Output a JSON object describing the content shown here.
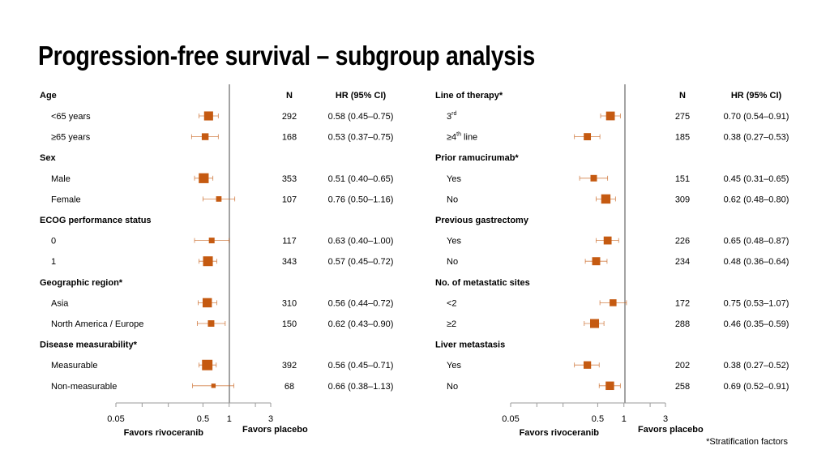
{
  "title": "Progression-free survival – subgroup analysis",
  "footnote": "*Stratification factors",
  "colors": {
    "marker": "#C55A11",
    "ref_line": "#8c8c8c",
    "axis": "#9a9a9a"
  },
  "chart_data": [
    {
      "type": "forest",
      "column_headers": {
        "n": "N",
        "hr": "HR (95% CI)"
      },
      "x_scale": "log",
      "reference_value": 1,
      "xticks": [
        0.05,
        0.5,
        1,
        3
      ],
      "xtick_labels": [
        "0.05",
        "0.5",
        "1",
        "3"
      ],
      "xlim": [
        0.05,
        3
      ],
      "favors_left": "Favors rivoceranib",
      "favors_right": "Favors placebo",
      "groups": [
        {
          "label": "Age",
          "rows": [
            {
              "label": "<65 years",
              "n": 292,
              "hr": 0.58,
              "lo": 0.45,
              "hi": 0.75,
              "hr_text": "0.58 (0.45–0.75)"
            },
            {
              "label": "≥65 years",
              "n": 168,
              "hr": 0.53,
              "lo": 0.37,
              "hi": 0.75,
              "hr_text": "0.53 (0.37–0.75)"
            }
          ]
        },
        {
          "label": "Sex",
          "rows": [
            {
              "label": "Male",
              "n": 353,
              "hr": 0.51,
              "lo": 0.4,
              "hi": 0.65,
              "hr_text": "0.51 (0.40–0.65)"
            },
            {
              "label": "Female",
              "n": 107,
              "hr": 0.76,
              "lo": 0.5,
              "hi": 1.16,
              "hr_text": "0.76 (0.50–1.16)"
            }
          ]
        },
        {
          "label": "ECOG performance status",
          "rows": [
            {
              "label": "0",
              "n": 117,
              "hr": 0.63,
              "lo": 0.4,
              "hi": 1.0,
              "hr_text": "0.63 (0.40–1.00)"
            },
            {
              "label": "1",
              "n": 343,
              "hr": 0.57,
              "lo": 0.45,
              "hi": 0.72,
              "hr_text": "0.57 (0.45–0.72)"
            }
          ]
        },
        {
          "label": "Geographic region*",
          "rows": [
            {
              "label": "Asia",
              "n": 310,
              "hr": 0.56,
              "lo": 0.44,
              "hi": 0.72,
              "hr_text": "0.56 (0.44–0.72)"
            },
            {
              "label": "North America / Europe",
              "n": 150,
              "hr": 0.62,
              "lo": 0.43,
              "hi": 0.9,
              "hr_text": "0.62 (0.43–0.90)"
            }
          ]
        },
        {
          "label": "Disease measurability*",
          "rows": [
            {
              "label": "Measurable",
              "n": 392,
              "hr": 0.56,
              "lo": 0.45,
              "hi": 0.71,
              "hr_text": "0.56 (0.45–0.71)"
            },
            {
              "label": "Non-measurable",
              "n": 68,
              "hr": 0.66,
              "lo": 0.38,
              "hi": 1.13,
              "hr_text": "0.66 (0.38–1.13)"
            }
          ]
        }
      ]
    },
    {
      "type": "forest",
      "column_headers": {
        "n": "N",
        "hr": "HR (95% CI)"
      },
      "x_scale": "log",
      "reference_value": 1,
      "xticks": [
        0.05,
        0.5,
        1,
        3
      ],
      "xtick_labels": [
        "0.05",
        "0.5",
        "1",
        "3"
      ],
      "xlim": [
        0.05,
        3
      ],
      "favors_left": "Favors rivoceranib",
      "favors_right": "Favors placebo",
      "groups": [
        {
          "label": "Line of therapy*",
          "rows": [
            {
              "label": "3",
              "sup": "rd",
              "n": 275,
              "hr": 0.7,
              "lo": 0.54,
              "hi": 0.91,
              "hr_text": "0.70 (0.54–0.91)"
            },
            {
              "label": "≥4",
              "sup": "th",
              "suffix": " line",
              "n": 185,
              "hr": 0.38,
              "lo": 0.27,
              "hi": 0.53,
              "hr_text": "0.38 (0.27–0.53)"
            }
          ]
        },
        {
          "label": "Prior ramucirumab*",
          "rows": [
            {
              "label": "Yes",
              "n": 151,
              "hr": 0.45,
              "lo": 0.31,
              "hi": 0.65,
              "hr_text": "0.45 (0.31–0.65)"
            },
            {
              "label": "No",
              "n": 309,
              "hr": 0.62,
              "lo": 0.48,
              "hi": 0.8,
              "hr_text": "0.62 (0.48–0.80)"
            }
          ]
        },
        {
          "label": "Previous gastrectomy",
          "rows": [
            {
              "label": "Yes",
              "n": 226,
              "hr": 0.65,
              "lo": 0.48,
              "hi": 0.87,
              "hr_text": "0.65 (0.48–0.87)"
            },
            {
              "label": "No",
              "n": 234,
              "hr": 0.48,
              "lo": 0.36,
              "hi": 0.64,
              "hr_text": "0.48 (0.36–0.64)"
            }
          ]
        },
        {
          "label": "No. of metastatic sites",
          "rows": [
            {
              "label": "<2",
              "n": 172,
              "hr": 0.75,
              "lo": 0.53,
              "hi": 1.07,
              "hr_text": "0.75 (0.53–1.07)"
            },
            {
              "label": "≥2",
              "n": 288,
              "hr": 0.46,
              "lo": 0.35,
              "hi": 0.59,
              "hr_text": "0.46 (0.35–0.59)"
            }
          ]
        },
        {
          "label": "Liver metastasis",
          "rows": [
            {
              "label": "Yes",
              "n": 202,
              "hr": 0.38,
              "lo": 0.27,
              "hi": 0.52,
              "hr_text": "0.38 (0.27–0.52)"
            },
            {
              "label": "No",
              "n": 258,
              "hr": 0.69,
              "lo": 0.52,
              "hi": 0.91,
              "hr_text": "0.69 (0.52–0.91)"
            }
          ]
        }
      ]
    }
  ]
}
